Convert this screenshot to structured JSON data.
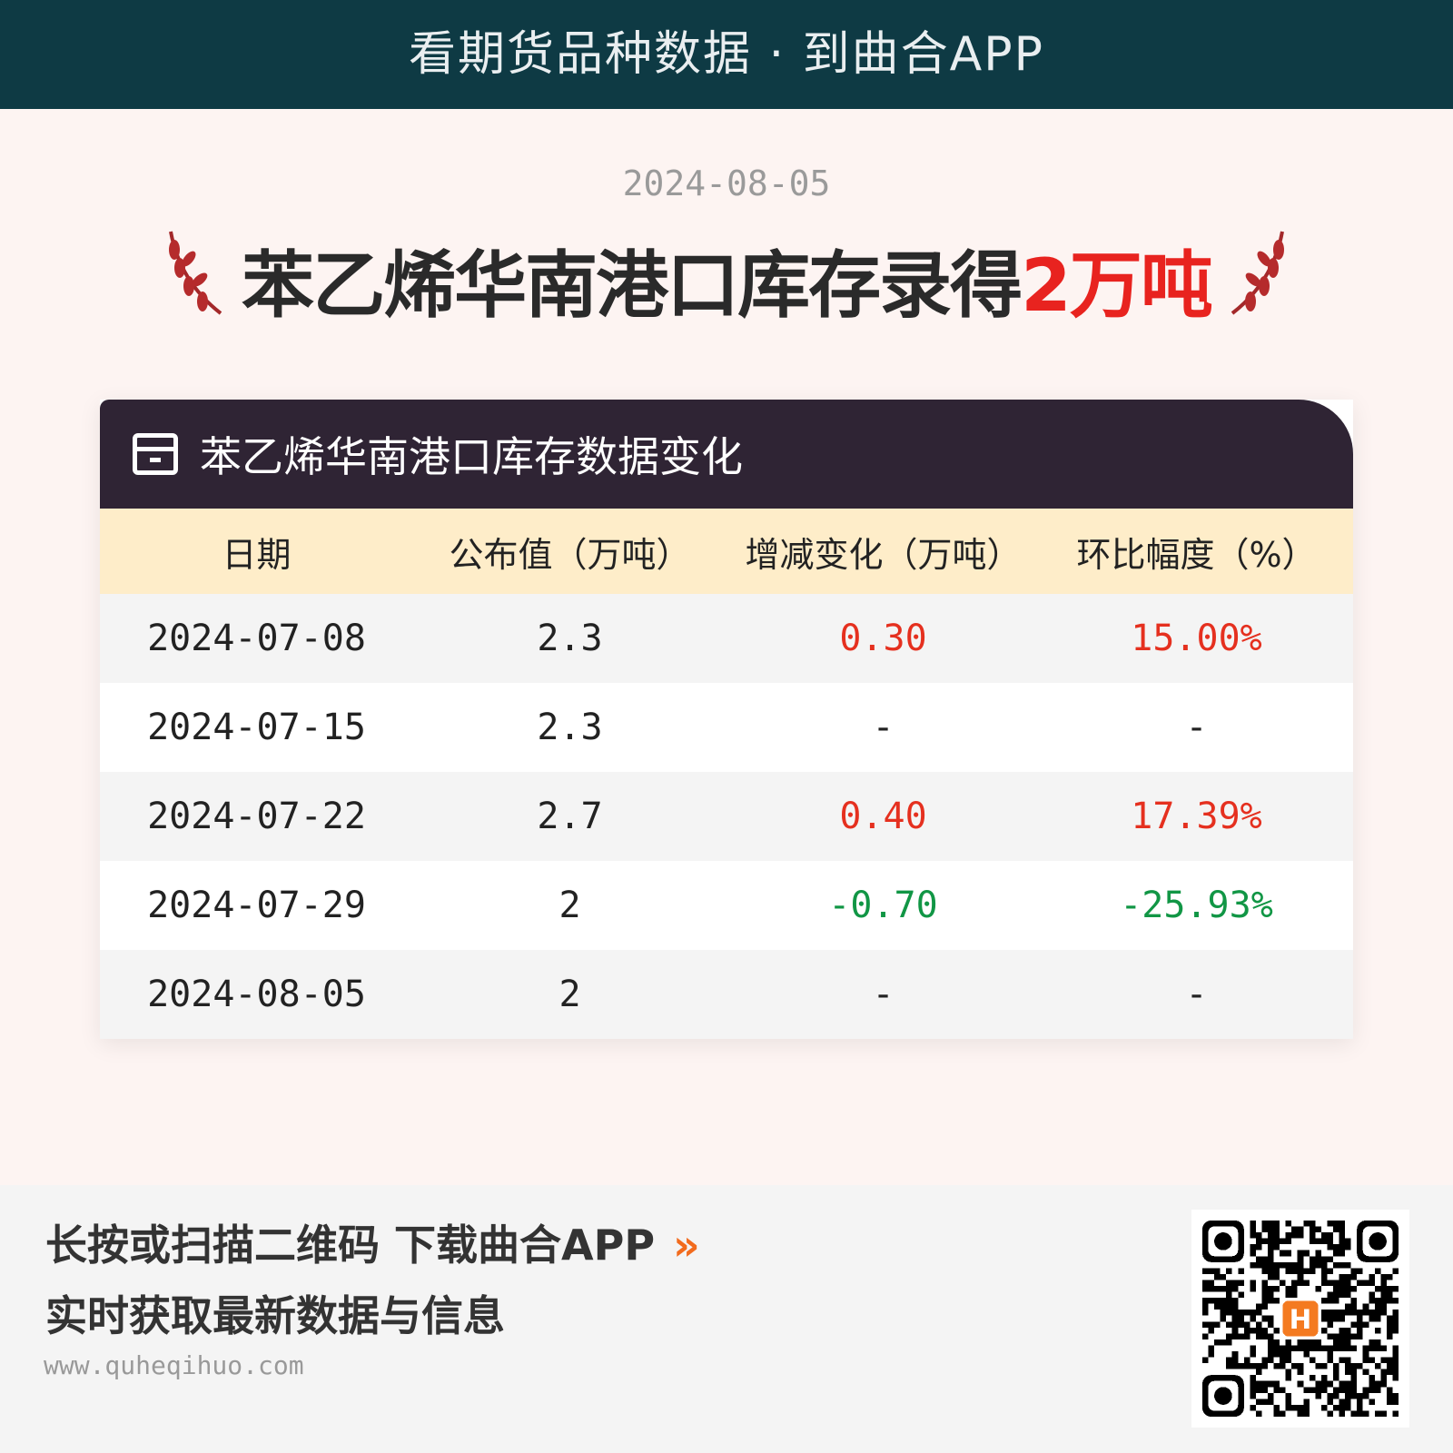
{
  "banner": {
    "text": "看期货品种数据 · 到曲合APP"
  },
  "headline": {
    "date": "2024-08-05",
    "title_prefix": "苯乙烯华南港口库存录得",
    "title_highlight": "2万吨"
  },
  "table": {
    "title": "苯乙烯华南港口库存数据变化",
    "columns": [
      "日期",
      "公布值（万吨）",
      "增减变化（万吨）",
      "环比幅度（%）"
    ],
    "rows": [
      {
        "date": "2024-07-08",
        "value": "2.3",
        "change": "0.30",
        "pct": "15.00%",
        "trend": "up"
      },
      {
        "date": "2024-07-15",
        "value": "2.3",
        "change": "-",
        "pct": "-",
        "trend": "none"
      },
      {
        "date": "2024-07-22",
        "value": "2.7",
        "change": "0.40",
        "pct": "17.39%",
        "trend": "up"
      },
      {
        "date": "2024-07-29",
        "value": "2",
        "change": "-0.70",
        "pct": "-25.93%",
        "trend": "down"
      },
      {
        "date": "2024-08-05",
        "value": "2",
        "change": "-",
        "pct": "-",
        "trend": "none"
      }
    ]
  },
  "footer": {
    "line1": "长按或扫描二维码  下载曲合APP",
    "arrow": "»",
    "line2": "实时获取最新数据与信息",
    "url": "www.quheqihuo.com"
  },
  "colors": {
    "up": "#e5301f",
    "down": "#119645",
    "accent": "#f26b1d",
    "banner": "#0e3a44"
  }
}
